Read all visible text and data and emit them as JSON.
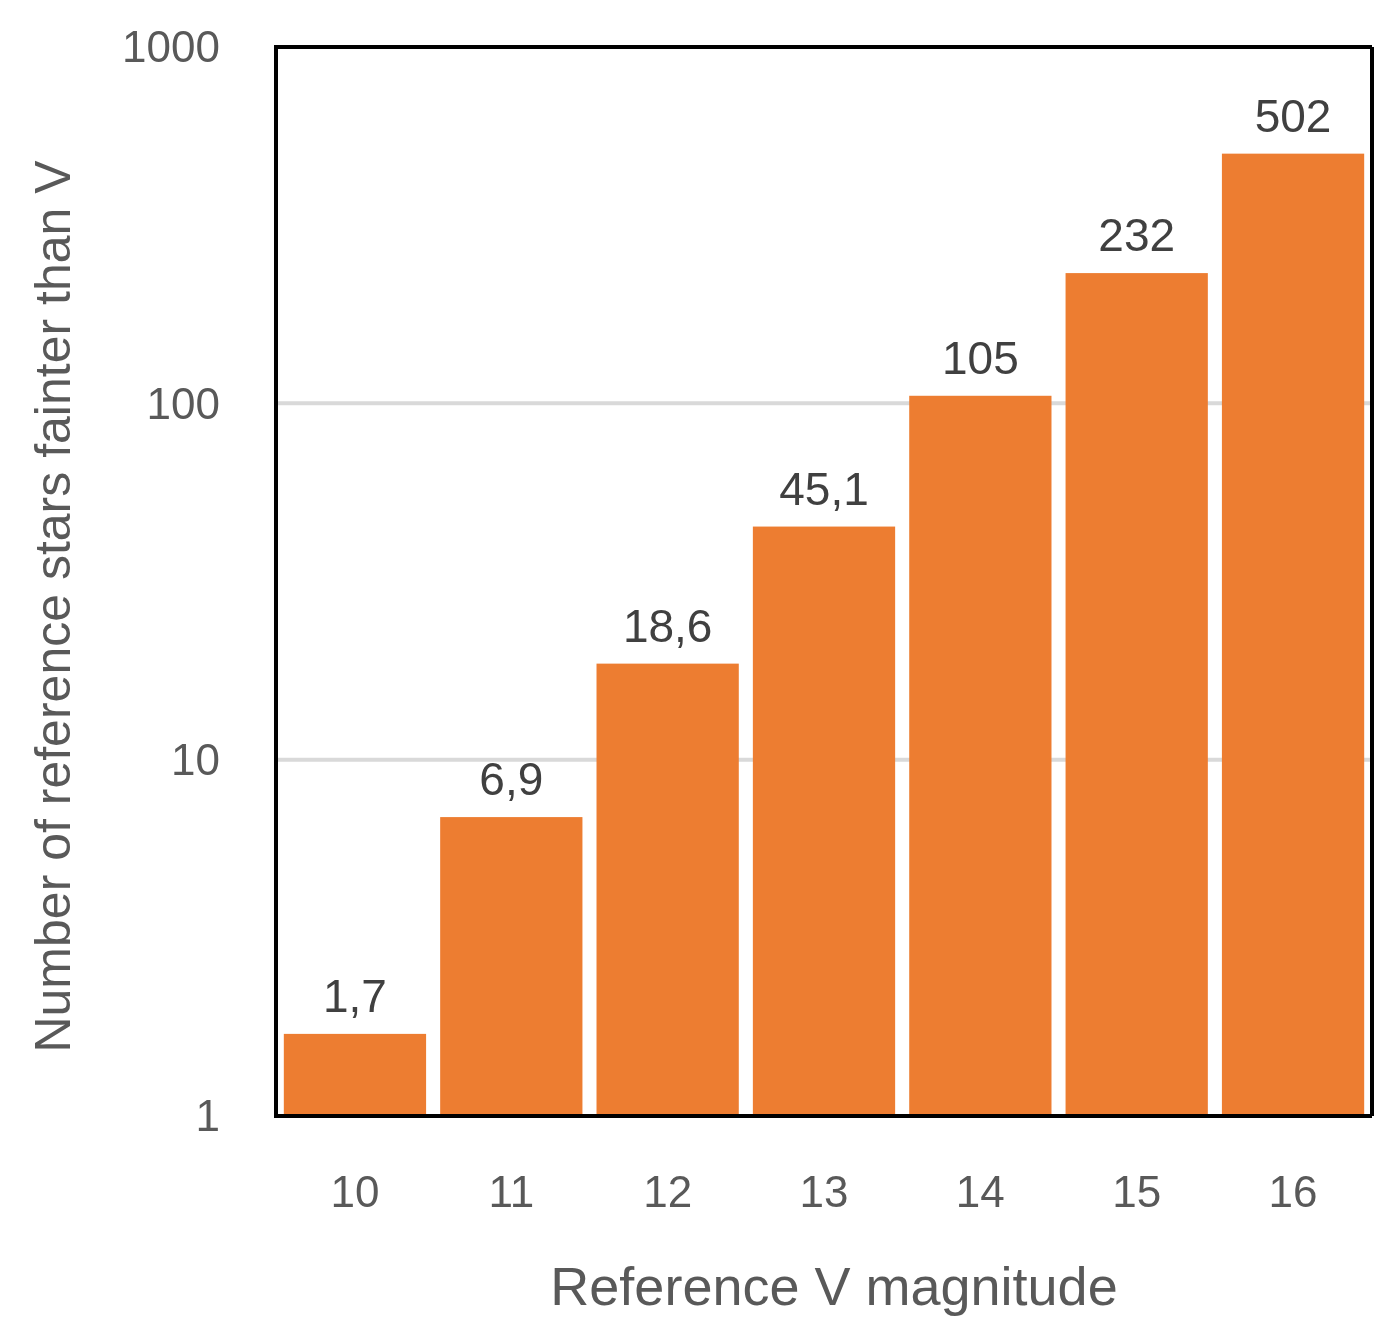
{
  "chart_data": {
    "type": "bar",
    "categories": [
      "10",
      "11",
      "12",
      "13",
      "14",
      "15",
      "16"
    ],
    "values": [
      1.7,
      6.9,
      18.6,
      45.1,
      105,
      232,
      502
    ],
    "value_labels": [
      "1,7",
      "6,9",
      "18,6",
      "45,1",
      "105",
      "232",
      "502"
    ],
    "color": "#ed7d31",
    "log": true,
    "ylim": [
      1,
      1000
    ],
    "yticks": [
      1,
      10,
      100,
      1000
    ],
    "grid": "y",
    "xlabel": "Reference V magnitude",
    "ylabel": "Number of reference stars fainter than V"
  }
}
